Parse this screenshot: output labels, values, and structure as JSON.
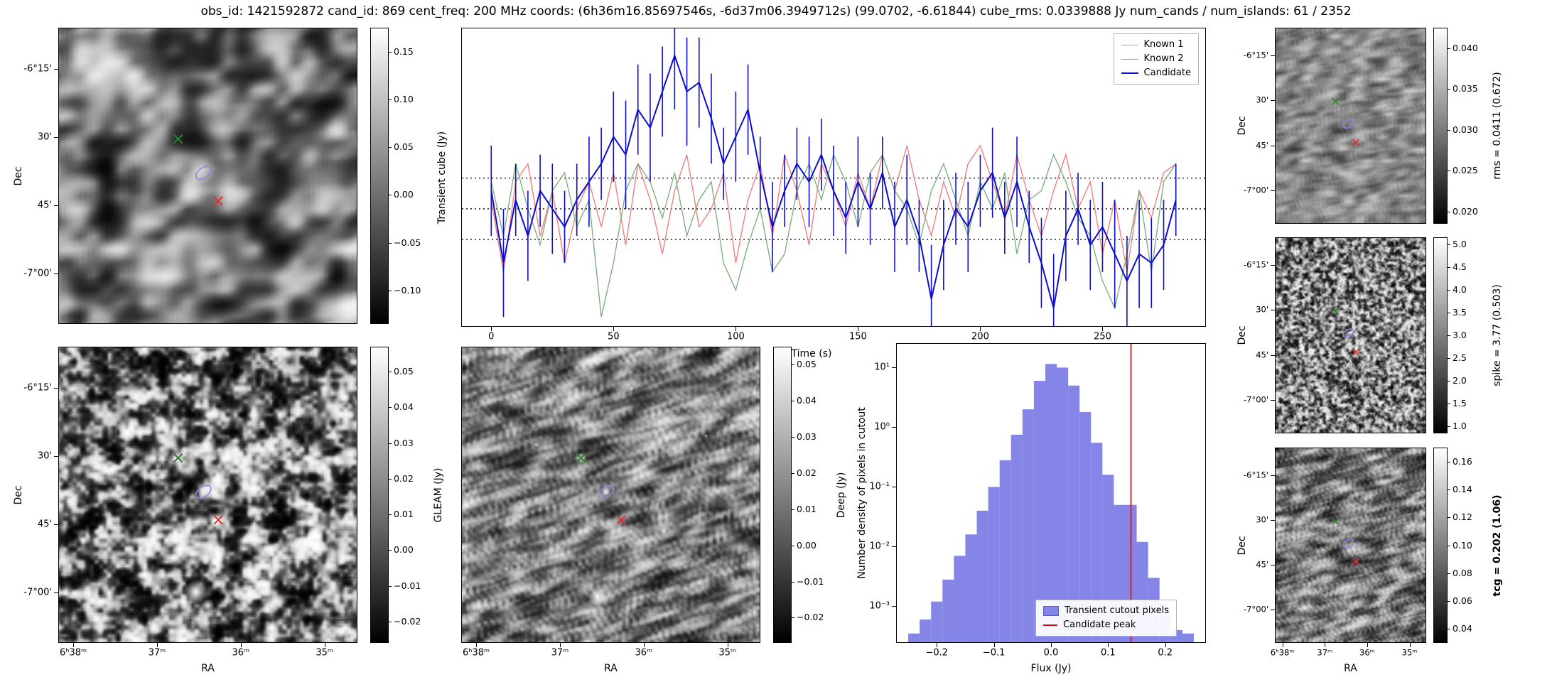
{
  "title": "obs_id: 1421592872 cand_id: 869 cent_freq: 200 MHz coords: (6h36m16.85697546s, -6d37m06.3949712s) (99.0702, -6.61844) cube_rms: 0.0339888 Jy num_cands / num_islands: 61 / 2352",
  "colors": {
    "known1": "#f08080",
    "known2": "#7fb07f",
    "candidate": "#0d0dcc",
    "hist_fill": "#8585e8",
    "peak_line": "#e01010",
    "marker_green": "#2d7f2d",
    "marker_red": "#e03030",
    "marker_ellipse": "#8888dd"
  },
  "axes": {
    "dec_label": "Dec",
    "ra_label": "RA",
    "dec_ticks": [
      "-6°15'",
      "30'",
      "45'",
      "-7°00'"
    ],
    "ra_ticks": [
      "6ʰ38ᵐ",
      "37ᵐ",
      "36ᵐ",
      "35ᵐ"
    ]
  },
  "sky_markers": [
    {
      "name": "known-source-1",
      "symbol": "x",
      "color_key": "marker_green",
      "fx": 0.4,
      "fy": 0.375
    },
    {
      "name": "candidate-ellipse",
      "symbol": "ellipse",
      "color_key": "marker_ellipse",
      "fx": 0.485,
      "fy": 0.49
    },
    {
      "name": "known-source-2",
      "symbol": "x",
      "color_key": "marker_red",
      "fx": 0.535,
      "fy": 0.585
    }
  ],
  "colorbars": {
    "transient": {
      "label": "",
      "tick_labels": [
        "0.15",
        "0.10",
        "0.05",
        "0.00",
        "−0.05",
        "−0.10"
      ],
      "tick_values": [
        0.15,
        0.1,
        0.05,
        0.0,
        -0.05,
        -0.1
      ],
      "range": [
        -0.135,
        0.175
      ],
      "bold": false
    },
    "gleam": {
      "label": "GLEAM (Jy)",
      "tick_labels": [
        "0.05",
        "0.04",
        "0.03",
        "0.02",
        "0.01",
        "0.00",
        "−0.01",
        "−0.02"
      ],
      "tick_values": [
        0.05,
        0.04,
        0.03,
        0.02,
        0.01,
        0.0,
        -0.01,
        -0.02
      ],
      "range": [
        -0.026,
        0.057
      ],
      "bold": false
    },
    "deep": {
      "label": "Deep (Jy)",
      "tick_labels": [
        "0.05",
        "0.04",
        "0.03",
        "0.02",
        "0.01",
        "0.00",
        "−0.01",
        "−0.02"
      ],
      "tick_values": [
        0.05,
        0.04,
        0.03,
        0.02,
        0.01,
        0.0,
        -0.01,
        -0.02
      ],
      "range": [
        -0.027,
        0.055
      ],
      "bold": false
    },
    "rms": {
      "label": "rms = 0.0411 (0.672)",
      "tick_labels": [
        "0.040",
        "0.035",
        "0.030",
        "0.025",
        "0.020"
      ],
      "tick_values": [
        0.04,
        0.035,
        0.03,
        0.025,
        0.02
      ],
      "range": [
        0.0185,
        0.0425
      ],
      "bold": false
    },
    "spike": {
      "label": "spike = 3.77 (0.503)",
      "tick_labels": [
        "5.0",
        "4.5",
        "4.0",
        "3.5",
        "3.0",
        "2.5",
        "2.0",
        "1.5",
        "1.0"
      ],
      "tick_values": [
        5.0,
        4.5,
        4.0,
        3.5,
        3.0,
        2.5,
        2.0,
        1.5,
        1.0
      ],
      "range": [
        0.85,
        5.15
      ],
      "bold": false
    },
    "tcg": {
      "label": "tcg = 0.202 (1.06)",
      "tick_labels": [
        "0.16",
        "0.14",
        "0.12",
        "0.10",
        "0.08",
        "0.06",
        "0.04"
      ],
      "tick_values": [
        0.16,
        0.14,
        0.12,
        0.1,
        0.08,
        0.06,
        0.04
      ],
      "range": [
        0.03,
        0.17
      ],
      "bold": true
    }
  },
  "chart_data": [
    {
      "type": "line",
      "title": "",
      "xlabel": "Time (s)",
      "ylabel": "Transient cube (Jy)",
      "xlim": [
        -12,
        292
      ],
      "ylim": [
        -0.13,
        0.2
      ],
      "xtick_values": [
        0,
        50,
        100,
        150,
        200,
        250
      ],
      "xtick_labels": [
        "0",
        "50",
        "100",
        "150",
        "200",
        "250"
      ],
      "hlines": [
        0.034,
        0,
        -0.034
      ],
      "hline_style": "dotted",
      "legend_position": "upper right",
      "grid": false,
      "x": [
        0,
        5,
        10,
        15,
        20,
        25,
        30,
        35,
        40,
        45,
        50,
        55,
        60,
        65,
        70,
        75,
        80,
        85,
        90,
        95,
        100,
        105,
        110,
        115,
        120,
        125,
        130,
        135,
        140,
        145,
        150,
        155,
        160,
        165,
        170,
        175,
        180,
        185,
        190,
        195,
        200,
        205,
        210,
        215,
        220,
        225,
        230,
        235,
        240,
        245,
        250,
        255,
        260,
        265,
        270,
        275,
        280
      ],
      "series": [
        {
          "name": "Known 1",
          "color_key": "known1",
          "values": [
            0.01,
            -0.07,
            0.03,
            0.05,
            -0.03,
            0.02,
            -0.06,
            0.0,
            0.03,
            -0.02,
            0.04,
            -0.04,
            0.05,
            0.01,
            -0.05,
            0.02,
            0.06,
            -0.02,
            0.0,
            0.04,
            -0.06,
            0.01,
            0.05,
            -0.03,
            0.06,
            0.02,
            -0.04,
            0.05,
            0.02,
            -0.02,
            0.04,
            0.0,
            0.06,
            0.02,
            0.07,
            0.01,
            -0.03,
            0.03,
            -0.01,
            0.05,
            0.07,
            0.03,
            -0.01,
            0.06,
            0.01,
            -0.03,
            0.02,
            0.06,
            0.0,
            0.03,
            -0.05,
            0.01,
            -0.07,
            0.02,
            -0.01,
            0.04,
            0.05
          ]
        },
        {
          "name": "Known 2",
          "color_key": "known2",
          "values": [
            0.03,
            -0.03,
            0.05,
            0.0,
            -0.04,
            0.02,
            0.04,
            -0.02,
            0.01,
            -0.12,
            -0.06,
            0.02,
            0.05,
            0.03,
            -0.01,
            0.04,
            -0.03,
            0.01,
            0.03,
            -0.06,
            -0.09,
            -0.04,
            0.0,
            -0.07,
            -0.05,
            0.02,
            0.05,
            0.01,
            0.06,
            0.03,
            -0.02,
            0.04,
            0.06,
            0.02,
            0.0,
            -0.04,
            0.02,
            0.05,
            0.01,
            -0.03,
            0.03,
            0.0,
            0.04,
            -0.05,
            0.01,
            0.02,
            0.06,
            0.03,
            -0.01,
            -0.03,
            -0.08,
            -0.11,
            -0.05,
            0.02,
            -0.07,
            0.03,
            0.05
          ]
        },
        {
          "name": "Candidate",
          "color_key": "candidate",
          "values": [
            0.02,
            -0.06,
            0.01,
            -0.03,
            0.02,
            0.0,
            -0.02,
            0.01,
            0.03,
            0.05,
            0.08,
            0.06,
            0.11,
            0.09,
            0.13,
            0.17,
            0.13,
            0.14,
            0.1,
            0.05,
            0.08,
            0.11,
            0.04,
            -0.02,
            0.02,
            0.05,
            0.03,
            0.06,
            0.02,
            -0.01,
            0.03,
            0.0,
            0.04,
            -0.02,
            0.01,
            -0.03,
            -0.1,
            -0.04,
            0.0,
            -0.02,
            0.02,
            0.04,
            -0.01,
            0.03,
            -0.02,
            -0.06,
            -0.11,
            -0.03,
            0.0,
            -0.04,
            -0.02,
            -0.05,
            -0.08,
            -0.05,
            -0.06,
            -0.04,
            0.01
          ],
          "errors": [
            0.05,
            0.06,
            0.04,
            0.05,
            0.04,
            0.05,
            0.04,
            0.04,
            0.05,
            0.04,
            0.05,
            0.06,
            0.05,
            0.06,
            0.05,
            0.06,
            0.06,
            0.05,
            0.05,
            0.04,
            0.05,
            0.05,
            0.04,
            0.05,
            0.04,
            0.04,
            0.05,
            0.04,
            0.05,
            0.04,
            0.05,
            0.04,
            0.04,
            0.05,
            0.05,
            0.04,
            0.06,
            0.05,
            0.04,
            0.05,
            0.04,
            0.05,
            0.04,
            0.05,
            0.04,
            0.05,
            0.06,
            0.05,
            0.04,
            0.05,
            0.05,
            0.06,
            0.05,
            0.06,
            0.05,
            0.05,
            0.04
          ]
        }
      ]
    },
    {
      "type": "histogram",
      "title": "",
      "xlabel": "Flux (Jy)",
      "ylabel": "Number density of pixels in cutout",
      "yscale": "log",
      "xlim": [
        -0.27,
        0.27
      ],
      "ylim": [
        0.00025,
        25
      ],
      "xtick_values": [
        -0.2,
        -0.1,
        0.0,
        0.1,
        0.2
      ],
      "xtick_labels": [
        "−0.2",
        "−0.1",
        "0.0",
        "0.1",
        "0.2"
      ],
      "ytick_values": [
        10,
        1,
        0.1,
        0.01,
        0.001
      ],
      "ytick_labels": [
        "10¹",
        "10⁰",
        "10⁻¹",
        "10⁻²",
        "10⁻³"
      ],
      "bin_edges": [
        -0.25,
        -0.23,
        -0.21,
        -0.19,
        -0.17,
        -0.15,
        -0.13,
        -0.11,
        -0.09,
        -0.07,
        -0.05,
        -0.03,
        -0.01,
        0.01,
        0.03,
        0.05,
        0.07,
        0.09,
        0.11,
        0.13,
        0.15,
        0.17,
        0.19,
        0.21,
        0.23,
        0.25
      ],
      "densities": [
        0.00035,
        0.0006,
        0.0012,
        0.0028,
        0.007,
        0.016,
        0.04,
        0.1,
        0.28,
        0.75,
        2.0,
        6.0,
        11.5,
        10.0,
        5.0,
        1.8,
        0.55,
        0.16,
        0.05,
        0.05,
        0.012,
        0.003,
        0.0009,
        0.0004,
        0.00035
      ],
      "candidate_peak": 0.14,
      "legend": [
        "Transient cutout pixels",
        "Candidate peak"
      ],
      "legend_position": "lower right"
    }
  ]
}
